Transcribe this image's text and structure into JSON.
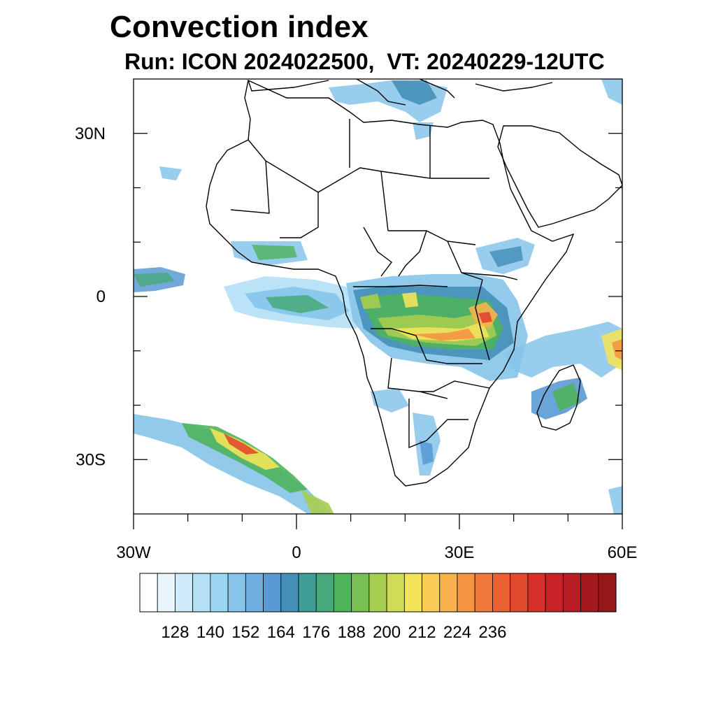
{
  "title": "Convection index",
  "subtitle": "Run: ICON 2024022500,  VT: 20240229-12UTC",
  "map": {
    "region": "Africa",
    "lon_range": [
      -30,
      60
    ],
    "lat_range": [
      -40,
      40
    ],
    "y_ticks": [
      {
        "lat": 30,
        "label": "30N"
      },
      {
        "lat": 0,
        "label": "0"
      },
      {
        "lat": -30,
        "label": "30S"
      }
    ],
    "x_ticks": [
      {
        "lon": -30,
        "label": "30W"
      },
      {
        "lon": 0,
        "label": "0"
      },
      {
        "lon": 30,
        "label": "30E"
      },
      {
        "lon": 60,
        "label": "60E"
      }
    ],
    "minor_lon_ticks": [
      -20,
      -10,
      10,
      20,
      40,
      50
    ],
    "minor_lat_ticks": [
      20,
      10,
      -10,
      -20
    ]
  },
  "colorbar": {
    "colors": [
      "#ffffff",
      "#e8f5fc",
      "#cfeaf8",
      "#b4e0f6",
      "#9dd6f4",
      "#86c4ea",
      "#70afe0",
      "#5a9ad4",
      "#4590b8",
      "#3f9f96",
      "#47a97a",
      "#4fb35c",
      "#78bf54",
      "#a6ce50",
      "#d0db56",
      "#f2e35a",
      "#f8cd54",
      "#f8b24c",
      "#f49544",
      "#f07a3c",
      "#ea6234",
      "#e24a2e",
      "#d8302a",
      "#c82428",
      "#b81c24",
      "#a61820",
      "#941818"
    ],
    "labels": [
      "128",
      "140",
      "152",
      "164",
      "176",
      "188",
      "200",
      "212",
      "224",
      "236"
    ],
    "label_positions": [
      2,
      4,
      6,
      8,
      10,
      12,
      14,
      16,
      18,
      20
    ]
  }
}
